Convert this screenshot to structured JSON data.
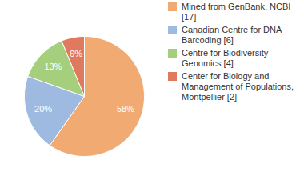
{
  "chart_data": {
    "type": "pie",
    "categories": [
      "Mined from GenBank, NCBI [17]",
      "Canadian Centre for DNA Barcoding [6]",
      "Centre for Biodiversity Genomics [4]",
      "Center for Biology and Management of Populations, Montpellier [2]"
    ],
    "values": [
      58,
      20,
      13,
      6
    ],
    "value_labels": [
      "58%",
      "20%",
      "13%",
      "6%"
    ],
    "colors": [
      "#f1aa72",
      "#9fbae0",
      "#a5cf7c",
      "#df7a5e"
    ],
    "data_labels": true,
    "legend": "right"
  }
}
